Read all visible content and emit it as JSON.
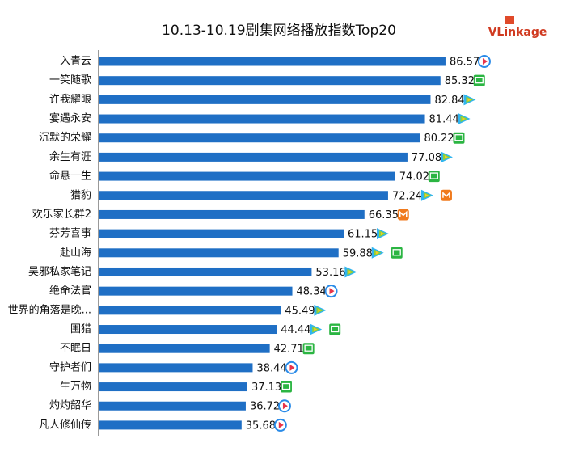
{
  "logo": "VLinkage",
  "chart_data": {
    "type": "bar",
    "orientation": "horizontal",
    "title": "10.13-10.19剧集网络播放指数Top20",
    "color": "#1f6fc5",
    "categories": [
      "入青云",
      "一笑随歌",
      "许我耀眼",
      "宴遇永安",
      "沉默的荣耀",
      "余生有涯",
      "命悬一生",
      "猎豹",
      "欢乐家长群2",
      "芬芳喜事",
      "赴山海",
      "吴邪私家笔记",
      "绝命法官",
      "世界的角落是晚...",
      "围猎",
      "不眠日",
      "守护者们",
      "生万物",
      "灼灼韶华",
      "凡人修仙传"
    ],
    "values": [
      86.57,
      85.32,
      82.84,
      81.44,
      80.22,
      77.08,
      74.02,
      72.24,
      66.35,
      61.15,
      59.88,
      53.16,
      48.34,
      45.49,
      44.44,
      42.71,
      38.44,
      37.13,
      36.72,
      35.68
    ]
  }
}
